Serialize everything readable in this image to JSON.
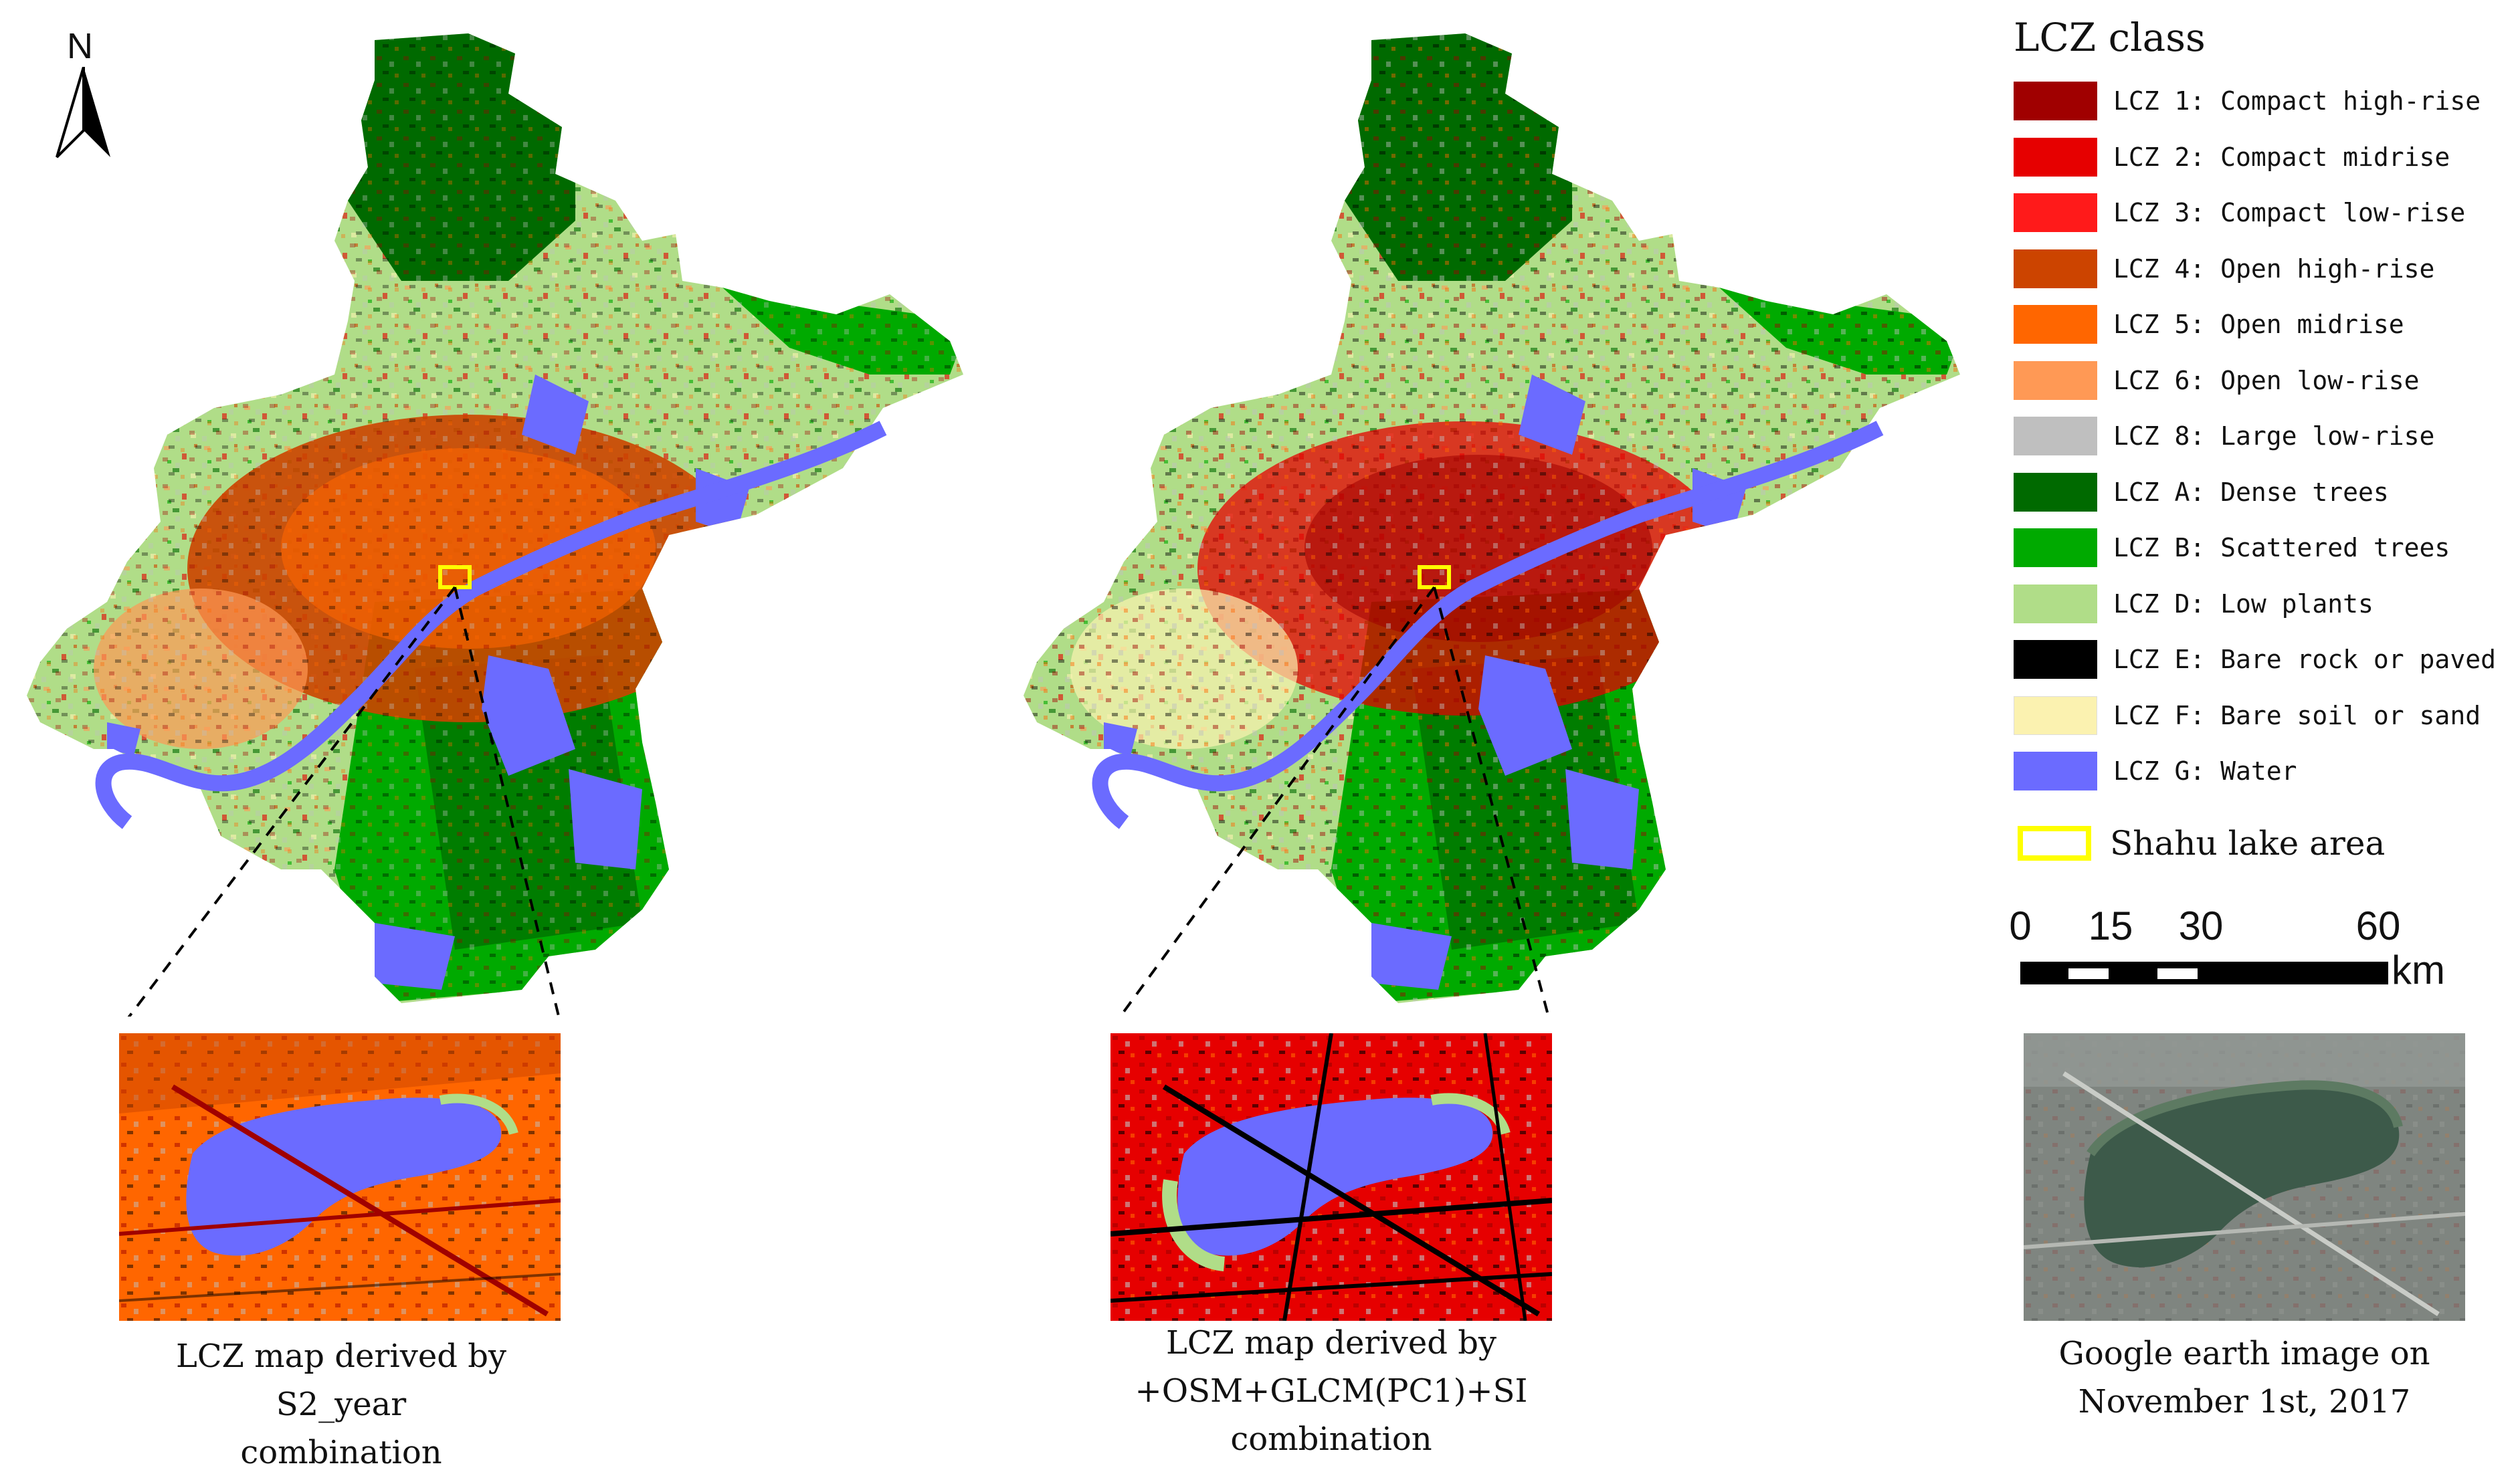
{
  "north_arrow": {
    "label": "N"
  },
  "legend": {
    "title": "LCZ class",
    "items": [
      {
        "label": "LCZ 1: Compact high-rise",
        "color": "#a00000"
      },
      {
        "label": "LCZ 2: Compact midrise",
        "color": "#e60000"
      },
      {
        "label": "LCZ 3: Compact low-rise",
        "color": "#ff1a1a"
      },
      {
        "label": "LCZ 4: Open high-rise",
        "color": "#cc4400"
      },
      {
        "label": "LCZ 5: Open midrise",
        "color": "#ff6600"
      },
      {
        "label": "LCZ 6: Open low-rise",
        "color": "#ff9955"
      },
      {
        "label": "LCZ 8: Large low-rise",
        "color": "#bfbfbf"
      },
      {
        "label": "LCZ A: Dense trees",
        "color": "#006a00"
      },
      {
        "label": "LCZ B: Scattered trees",
        "color": "#00aa00"
      },
      {
        "label": "LCZ D: Low plants",
        "color": "#b0dd88"
      },
      {
        "label": "LCZ E: Bare rock or paved",
        "color": "#000000"
      },
      {
        "label": "LCZ F: Bare soil or sand",
        "color": "#fbf2b0"
      },
      {
        "label": "LCZ G: Water",
        "color": "#6b6bff"
      }
    ],
    "study_area": {
      "label": "Shahu lake area",
      "color": "#ffff00"
    }
  },
  "scale_bar": {
    "ticks": [
      "0",
      "15",
      "30",
      "60"
    ],
    "unit": "km"
  },
  "captions": {
    "left": [
      "LCZ map derived by",
      "S2_year",
      "combination"
    ],
    "middle": [
      "LCZ map derived by",
      "+OSM+GLCM(PC1)+SI",
      "combination"
    ],
    "right": [
      "Google earth image on",
      "November 1st, 2017"
    ]
  }
}
